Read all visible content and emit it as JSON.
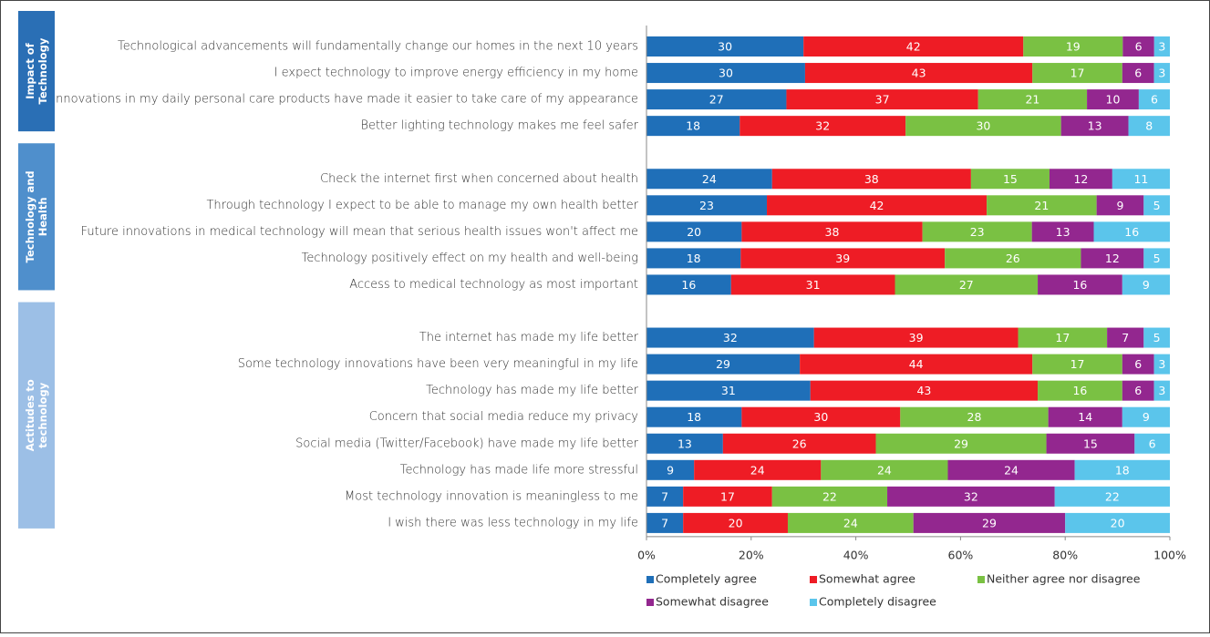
{
  "chart_data": {
    "type": "bar",
    "orientation": "horizontal",
    "stacked": true,
    "normalize": true,
    "groups": [
      {
        "name": "Impact of Technology",
        "categories": [
          "Technological advancements will fundamentally change our homes in the next 10 years",
          "I expect technology to improve energy efficiency in my home",
          "Innovations in my daily personal care products have made it easier to take care of my appearance",
          "Better lighting technology makes me feel safer"
        ]
      },
      {
        "name": "Technology and Health",
        "categories": [
          "Check the internet first when concerned about health",
          "Through technology I expect to be able to manage my own health better",
          "Future innovations in medical technology will mean that serious health issues won't affect me",
          "Technology positively effect on my health and well-being",
          "Access to medical technology as most important"
        ]
      },
      {
        "name": "Actitudes to technology",
        "categories": [
          "The internet has made my life better",
          "Some technology innovations have been very meaningful in my life",
          "Technology has made my life better",
          "Concern that social media reduce my privacy",
          "Social media (Twitter/Facebook) have made my life better",
          "Technology has made life more stressful",
          "Most technology innovation is meaningless to me",
          "I wish there was less technology in my life"
        ]
      }
    ],
    "group_colors": [
      "#2a6fb5",
      "#4f8fcc",
      "#9cbfe6"
    ],
    "series": [
      {
        "name": "Completely agree",
        "color": "#1f6fb8",
        "values": [
          [
            30,
            30,
            27,
            18
          ],
          [
            24,
            23,
            20,
            18,
            16
          ],
          [
            32,
            29,
            31,
            18,
            13,
            9,
            7,
            7
          ]
        ]
      },
      {
        "name": "Somewhat agree",
        "color": "#ee1c25",
        "values": [
          [
            42,
            43,
            37,
            32
          ],
          [
            38,
            42,
            38,
            39,
            31
          ],
          [
            39,
            44,
            43,
            30,
            26,
            24,
            17,
            20
          ]
        ]
      },
      {
        "name": "Neither agree nor disagree",
        "color": "#7ac143",
        "values": [
          [
            19,
            17,
            21,
            30
          ],
          [
            15,
            21,
            23,
            26,
            27
          ],
          [
            17,
            17,
            16,
            28,
            29,
            24,
            22,
            24
          ]
        ]
      },
      {
        "name": "Somewhat disagree",
        "color": "#93278f",
        "values": [
          [
            6,
            6,
            10,
            13
          ],
          [
            12,
            9,
            13,
            12,
            16
          ],
          [
            7,
            6,
            6,
            14,
            15,
            24,
            32,
            29
          ]
        ]
      },
      {
        "name": "Completely disagree",
        "color": "#5bc5eb",
        "values": [
          [
            3,
            3,
            6,
            8
          ],
          [
            11,
            5,
            16,
            5,
            9
          ],
          [
            5,
            3,
            3,
            9,
            6,
            18,
            22,
            20
          ]
        ]
      }
    ],
    "xlim": [
      0,
      100
    ],
    "xticks": [
      {
        "value": 0,
        "label": "0%"
      },
      {
        "value": 20,
        "label": "20%"
      },
      {
        "value": 40,
        "label": "40%"
      },
      {
        "value": 60,
        "label": "60%"
      },
      {
        "value": 80,
        "label": "80%"
      },
      {
        "value": 100,
        "label": "100%"
      }
    ],
    "legend": "bottom"
  }
}
